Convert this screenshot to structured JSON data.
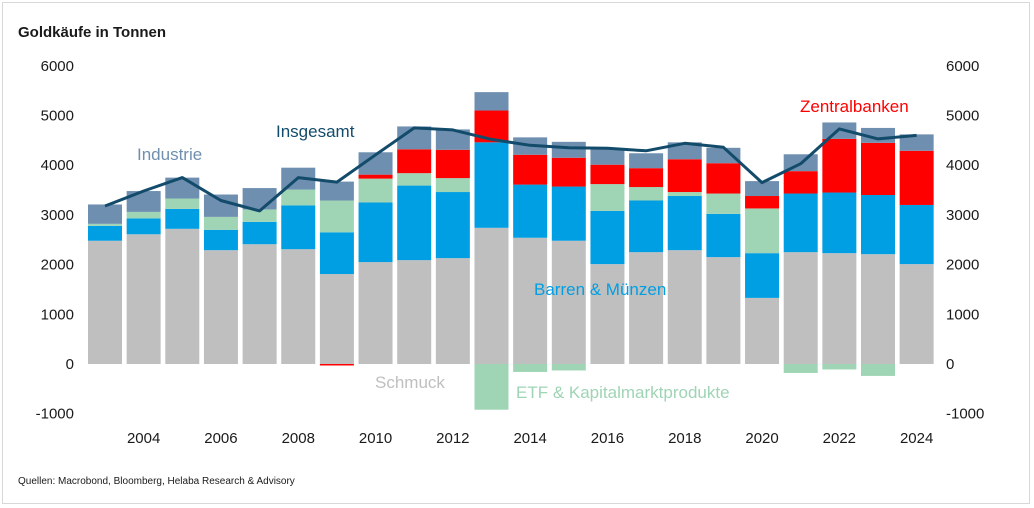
{
  "chart_data": {
    "type": "bar",
    "title": "Goldkäufe in Tonnen",
    "source": "Quellen: Macrobond,  Bloomberg, Helaba Research & Advisory",
    "xlabel": "",
    "ylabel": "",
    "ylim": [
      -1000,
      6000
    ],
    "yticks": [
      "-1000",
      "0",
      "1000",
      "2000",
      "3000",
      "4000",
      "5000",
      "6000"
    ],
    "ytick_values": [
      -1000,
      0,
      1000,
      2000,
      3000,
      4000,
      5000,
      6000
    ],
    "xtick_labels": [
      "2004",
      "2006",
      "2008",
      "2010",
      "2012",
      "2014",
      "2016",
      "2018",
      "2020",
      "2022",
      "2024"
    ],
    "categories": [
      "2003",
      "2004",
      "2005",
      "2006",
      "2007",
      "2008",
      "2009",
      "2010",
      "2011",
      "2012",
      "2013",
      "2014",
      "2015",
      "2016",
      "2017",
      "2018",
      "2019",
      "2020",
      "2021",
      "2022",
      "2023",
      "2024"
    ],
    "grid": false,
    "stacked": true,
    "series": [
      {
        "name": "Schmuck",
        "color": "#bfbfbf",
        "values": [
          2480,
          2610,
          2720,
          2290,
          2410,
          2310,
          1810,
          2050,
          2090,
          2130,
          2740,
          2540,
          2480,
          2010,
          2250,
          2290,
          2150,
          1330,
          2250,
          2230,
          2210,
          2010
        ]
      },
      {
        "name": "Barren & Münzen",
        "color": "#009fe3",
        "values": [
          300,
          320,
          400,
          410,
          450,
          880,
          840,
          1200,
          1500,
          1330,
          1720,
          1070,
          1090,
          1070,
          1040,
          1090,
          870,
          900,
          1180,
          1220,
          1190,
          1190
        ]
      },
      {
        "name": "ETF & Kapitalmarktprodukte",
        "color": "#9fd4b5",
        "values": [
          40,
          130,
          210,
          260,
          250,
          320,
          640,
          480,
          250,
          280,
          -920,
          -160,
          -130,
          540,
          270,
          80,
          410,
          900,
          -180,
          -110,
          -240,
          0
        ]
      },
      {
        "name": "Zentralbanken",
        "color": "#ff0000",
        "values": [
          0,
          0,
          0,
          0,
          0,
          0,
          -30,
          80,
          480,
          570,
          640,
          600,
          580,
          390,
          380,
          660,
          610,
          250,
          450,
          1080,
          1050,
          1090
        ]
      },
      {
        "name": "Industrie",
        "color": "#6f8fb0",
        "values": [
          390,
          420,
          420,
          450,
          430,
          440,
          380,
          450,
          460,
          410,
          370,
          350,
          320,
          330,
          300,
          340,
          310,
          300,
          340,
          330,
          300,
          330
        ]
      }
    ],
    "line": {
      "name": "Insgesamt",
      "color": "#134b6b",
      "values": [
        3180,
        3480,
        3750,
        3290,
        3080,
        3750,
        3660,
        4210,
        4750,
        4710,
        4520,
        4400,
        4350,
        4340,
        4290,
        4440,
        4360,
        3650,
        4030,
        4730,
        4530,
        4600
      ]
    },
    "annotations": [
      {
        "text": "Industrie",
        "color": "#6f8fb0"
      },
      {
        "text": "Insgesamt",
        "color": "#134b6b"
      },
      {
        "text": "Zentralbanken",
        "color": "#ff0000"
      },
      {
        "text": "Barren & Münzen",
        "color": "#009fe3"
      },
      {
        "text": "Schmuck",
        "color": "#bfbfbf"
      },
      {
        "text": "ETF & Kapitalmarktprodukte",
        "color": "#9fd4b5"
      }
    ]
  }
}
